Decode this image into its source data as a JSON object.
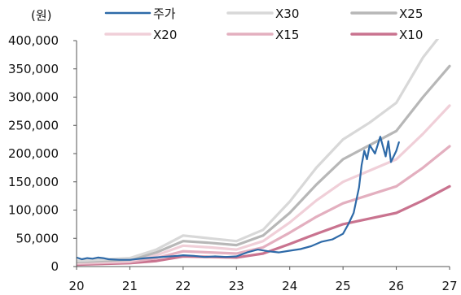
{
  "chart_data": {
    "type": "line",
    "y_unit": "(원)",
    "ylim": [
      0,
      400000
    ],
    "y_ticks": [
      "400,000",
      "350,000",
      "300,000",
      "250,000",
      "200,000",
      "150,000",
      "100,000",
      "50,000",
      "0"
    ],
    "y_tick_values": [
      400000,
      350000,
      300000,
      250000,
      200000,
      150000,
      100000,
      50000,
      0
    ],
    "xlim": [
      2020,
      2027
    ],
    "x_ticks": [
      "20",
      "21",
      "22",
      "23",
      "24",
      "25",
      "26",
      "27"
    ],
    "x_tick_values": [
      2020,
      2021,
      2022,
      2023,
      2024,
      2025,
      2026,
      2027
    ],
    "grid": false,
    "legend_position": "top",
    "series": [
      {
        "name": "주가",
        "color": "#2e6aa8",
        "x": [
          2020.0,
          2020.1,
          2020.2,
          2020.3,
          2020.4,
          2020.5,
          2020.6,
          2020.8,
          2021.0,
          2021.3,
          2021.6,
          2021.9,
          2022.0,
          2022.2,
          2022.4,
          2022.6,
          2022.8,
          2023.0,
          2023.2,
          2023.4,
          2023.6,
          2023.8,
          2024.0,
          2024.2,
          2024.4,
          2024.6,
          2024.8,
          2025.0,
          2025.1,
          2025.2,
          2025.3,
          2025.35,
          2025.4,
          2025.45,
          2025.5,
          2025.6,
          2025.7,
          2025.8,
          2025.85,
          2025.9,
          2026.0,
          2026.05
        ],
        "values": [
          16000,
          13000,
          15000,
          14000,
          16000,
          15000,
          13000,
          12000,
          12000,
          15000,
          17000,
          19000,
          20000,
          19000,
          17000,
          18000,
          17000,
          18000,
          25000,
          30000,
          27000,
          25000,
          28000,
          31000,
          36000,
          44000,
          48000,
          58000,
          75000,
          95000,
          140000,
          180000,
          205000,
          190000,
          215000,
          200000,
          230000,
          195000,
          222000,
          185000,
          205000,
          220000
        ]
      },
      {
        "name": "X30",
        "color": "#d8d8d8",
        "x": [
          2020.0,
          2021.0,
          2021.5,
          2022.0,
          2022.5,
          2023.0,
          2023.5,
          2024.0,
          2024.5,
          2025.0,
          2025.5,
          2026.0,
          2026.5,
          2027.0
        ],
        "values": [
          10000,
          15000,
          30000,
          55000,
          50000,
          45000,
          65000,
          115000,
          175000,
          225000,
          255000,
          290000,
          370000,
          430000
        ]
      },
      {
        "name": "X25",
        "color": "#b7b7b7",
        "x": [
          2020.0,
          2021.0,
          2021.5,
          2022.0,
          2022.5,
          2023.0,
          2023.5,
          2024.0,
          2024.5,
          2025.0,
          2025.5,
          2026.0,
          2026.5,
          2027.0
        ],
        "values": [
          8000,
          12000,
          25000,
          45000,
          42000,
          38000,
          55000,
          95000,
          145000,
          190000,
          215000,
          240000,
          300000,
          355000
        ]
      },
      {
        "name": "X20",
        "color": "#f0cfd8",
        "x": [
          2020.0,
          2021.0,
          2021.5,
          2022.0,
          2022.5,
          2023.0,
          2023.5,
          2024.0,
          2024.5,
          2025.0,
          2025.5,
          2026.0,
          2026.5,
          2027.0
        ],
        "values": [
          6500,
          10000,
          20000,
          37000,
          34000,
          30000,
          45000,
          78000,
          117000,
          150000,
          170000,
          190000,
          235000,
          285000
        ]
      },
      {
        "name": "X15",
        "color": "#e3afbf",
        "x": [
          2020.0,
          2021.0,
          2021.5,
          2022.0,
          2022.5,
          2023.0,
          2023.5,
          2024.0,
          2024.5,
          2025.0,
          2025.5,
          2026.0,
          2026.5,
          2027.0
        ],
        "values": [
          5000,
          8000,
          15000,
          27000,
          25000,
          23000,
          34000,
          60000,
          88000,
          112000,
          127000,
          142000,
          175000,
          213000
        ]
      },
      {
        "name": "X10",
        "color": "#c9738f",
        "x": [
          2020.0,
          2021.0,
          2021.5,
          2022.0,
          2022.5,
          2023.0,
          2023.5,
          2024.0,
          2024.5,
          2025.0,
          2025.5,
          2026.0,
          2026.5,
          2027.0
        ],
        "values": [
          3500,
          6000,
          10000,
          18000,
          17000,
          16000,
          23000,
          40000,
          58000,
          75000,
          85000,
          95000,
          117000,
          142000
        ]
      }
    ]
  }
}
